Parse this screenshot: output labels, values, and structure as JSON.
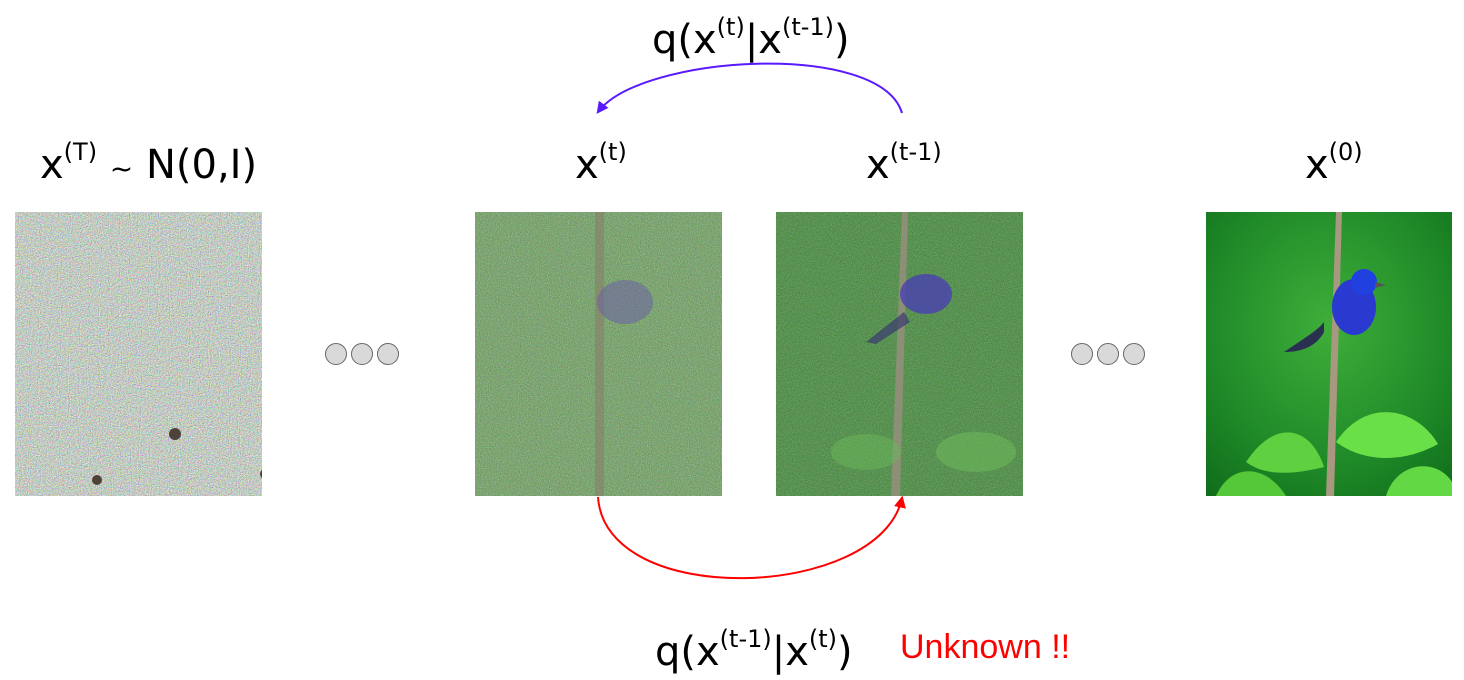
{
  "labels": {
    "xT": {
      "base": "x",
      "sup": "(T)",
      "tilde": "~",
      "dist": "N(0,I)"
    },
    "xt": {
      "base": "x",
      "sup": "(t)"
    },
    "xt1": {
      "base": "x",
      "sup": "(t-1)"
    },
    "x0": {
      "base": "x",
      "sup": "(0)"
    }
  },
  "forward": {
    "q": "q(",
    "base1": "x",
    "sup1": "(t)",
    "bar": "|",
    "base2": "x",
    "sup2": "(t-1)",
    "close": ")"
  },
  "reverse": {
    "q": "q(",
    "base1": "x",
    "sup1": "(t-1)",
    "bar": "|",
    "base2": "x",
    "sup2": "(t)",
    "close": ")"
  },
  "unknown": "Unknown !!",
  "colors": {
    "forward_arrow": "#5a1aff",
    "reverse_arrow": "#ff0000",
    "unknown": "#ff0000"
  }
}
